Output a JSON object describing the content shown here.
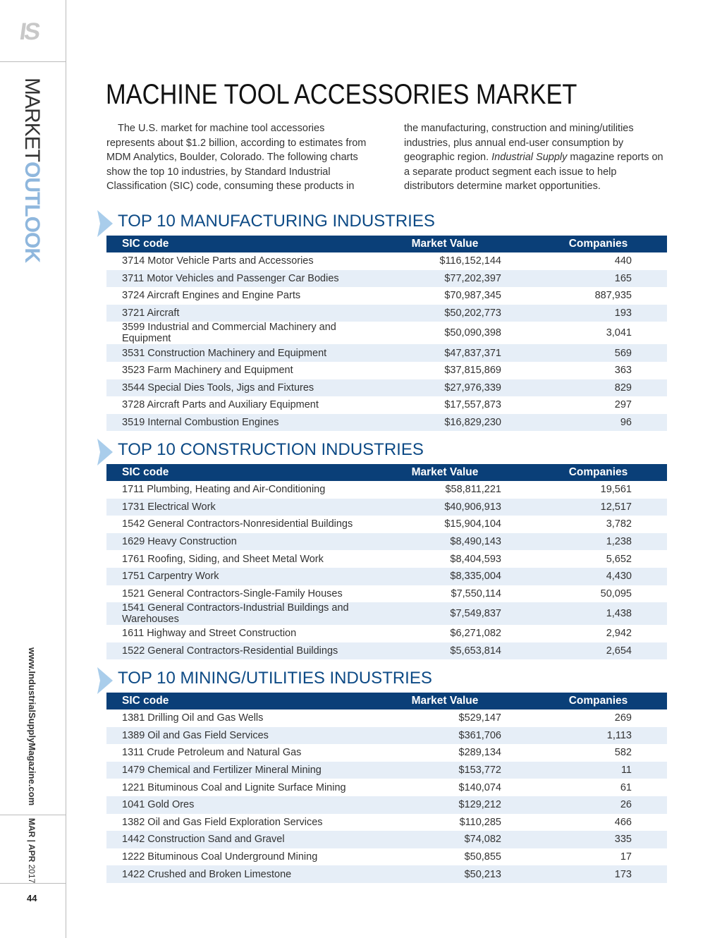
{
  "sidebar": {
    "logo": "IS",
    "section_label": {
      "light": "MARKET",
      "bold": "OUTLOOK"
    },
    "website": "www.IndustrialSupplyMagazine.com",
    "issue": {
      "months": "MAR | APR",
      "year": "2017"
    },
    "page_number": "44"
  },
  "article": {
    "title": "MACHINE TOOL ACCESSORIES MARKET",
    "intro": {
      "before": "The U.S. market for machine tool accessories represents about $1.2 billion, according to estimates from MDM Analytics, Boulder, Colorado. The following charts show the top 10 industries, by Standard Industrial Classification (SIC) code, consuming these products in the manufacturing, construction and mining/utilities industries, plus annual end-user consumption by geographic region.",
      "italic": "Industrial Supply",
      "after": "magazine reports on a separate product segment each issue to help distributors determine market opportunities."
    }
  },
  "tables": [
    {
      "title": "TOP 10 MANUFACTURING INDUSTRIES",
      "headers": [
        "SIC code",
        "Market Value",
        "Companies"
      ],
      "rows": [
        [
          "3714 Motor Vehicle Parts and Accessories",
          "$116,152,144",
          "440"
        ],
        [
          "3711 Motor Vehicles and Passenger Car Bodies",
          "$77,202,397",
          "165"
        ],
        [
          "3724 Aircraft Engines and Engine Parts",
          "$70,987,345",
          "887,935"
        ],
        [
          "3721 Aircraft",
          "$50,202,773",
          "193"
        ],
        [
          "3599 Industrial and Commercial Machinery and Equipment",
          "$50,090,398",
          "3,041"
        ],
        [
          "3531 Construction Machinery and Equipment",
          "$47,837,371",
          "569"
        ],
        [
          "3523 Farm Machinery and Equipment",
          "$37,815,869",
          "363"
        ],
        [
          "3544 Special Dies Tools, Jigs and Fixtures",
          "$27,976,339",
          "829"
        ],
        [
          "3728 Aircraft Parts and Auxiliary Equipment",
          "$17,557,873",
          "297"
        ],
        [
          "3519 Internal Combustion Engines",
          "$16,829,230",
          "96"
        ]
      ]
    },
    {
      "title": "TOP 10 CONSTRUCTION INDUSTRIES",
      "headers": [
        "SIC code",
        "Market Value",
        "Companies"
      ],
      "rows": [
        [
          "1711 Plumbing, Heating and Air-Conditioning",
          "$58,811,221",
          "19,561"
        ],
        [
          "1731 Electrical Work",
          "$40,906,913",
          "12,517"
        ],
        [
          "1542 General Contractors-Nonresidential Buildings",
          "$15,904,104",
          "3,782"
        ],
        [
          "1629 Heavy Construction",
          "$8,490,143",
          "1,238"
        ],
        [
          "1761 Roofing, Siding, and Sheet Metal Work",
          "$8,404,593",
          "5,652"
        ],
        [
          "1751 Carpentry Work",
          "$8,335,004",
          "4,430"
        ],
        [
          "1521 General Contractors-Single-Family Houses",
          "$7,550,114",
          "50,095"
        ],
        [
          "1541 General Contractors-Industrial Buildings and Warehouses",
          "$7,549,837",
          "1,438"
        ],
        [
          "1611 Highway and Street Construction",
          "$6,271,082",
          "2,942"
        ],
        [
          "1522 General Contractors-Residential Buildings",
          "$5,653,814",
          "2,654"
        ]
      ]
    },
    {
      "title": "TOP 10 MINING/UTILITIES INDUSTRIES",
      "headers": [
        "SIC code",
        "Market Value",
        "Companies"
      ],
      "rows": [
        [
          "1381 Drilling Oil and Gas Wells",
          "$529,147",
          "269"
        ],
        [
          "1389 Oil and Gas Field Services",
          "$361,706",
          "1,113"
        ],
        [
          "1311 Crude Petroleum and Natural Gas",
          "$289,134",
          "582"
        ],
        [
          "1479 Chemical and Fertilizer Mineral Mining",
          "$153,772",
          "11"
        ],
        [
          "1221 Bituminous Coal and Lignite Surface Mining",
          "$140,074",
          "61"
        ],
        [
          "1041 Gold Ores",
          "$129,212",
          "26"
        ],
        [
          "1382 Oil and Gas Field Exploration Services",
          "$110,285",
          "466"
        ],
        [
          "1442 Construction Sand and Gravel",
          "$74,082",
          "335"
        ],
        [
          "1222 Bituminous Coal Underground Mining",
          "$50,855",
          "17"
        ],
        [
          "1422 Crushed and Broken Limestone",
          "$50,213",
          "173"
        ]
      ]
    }
  ]
}
